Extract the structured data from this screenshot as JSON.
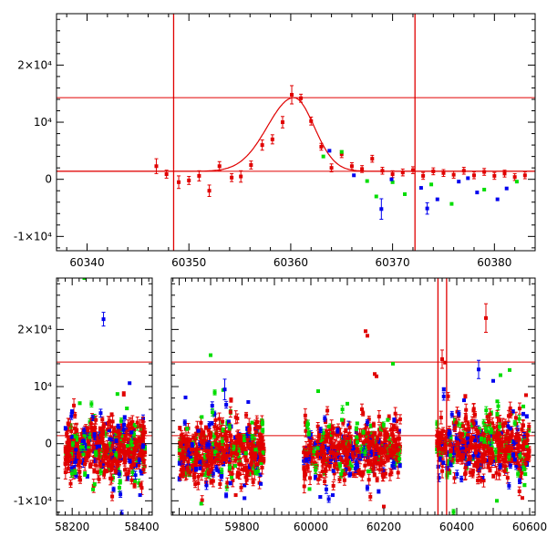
{
  "chart_data": [
    {
      "type": "scatter",
      "panel": "zoom",
      "xlim": [
        60337,
        60384
      ],
      "ylim": [
        -12500,
        29000
      ],
      "x_ticks": [
        {
          "value": 60340,
          "label": "60340"
        },
        {
          "value": 60350,
          "label": "60350"
        },
        {
          "value": 60360,
          "label": "60360"
        },
        {
          "value": 60370,
          "label": "60370"
        },
        {
          "value": 60380,
          "label": "60380"
        }
      ],
      "y_ticks": [
        {
          "value": -10000,
          "label": "-1×10⁴"
        },
        {
          "value": 0,
          "label": "0"
        },
        {
          "value": 10000,
          "label": "10⁴"
        },
        {
          "value": 20000,
          "label": "2×10⁴"
        }
      ],
      "hlines": [
        1400,
        14300
      ],
      "vlines": [
        60348.5,
        60372.2
      ],
      "fit_curve": {
        "baseline": 1400,
        "peak_x": 60360.3,
        "peak_y": 14300,
        "width_left": 2.6,
        "width_right": 2.0
      },
      "series": [
        {
          "color": "#e00000",
          "points": [
            {
              "x": 60346.8,
              "y": 2300,
              "e": 1300
            },
            {
              "x": 60347.8,
              "y": 900,
              "e": 700
            },
            {
              "x": 60349.0,
              "y": -500,
              "e": 1100
            },
            {
              "x": 60350.0,
              "y": -200,
              "e": 700
            },
            {
              "x": 60351.0,
              "y": 600,
              "e": 900
            },
            {
              "x": 60352.0,
              "y": -2000,
              "e": 1000
            },
            {
              "x": 60353.0,
              "y": 2300,
              "e": 800
            },
            {
              "x": 60354.2,
              "y": 300,
              "e": 700
            },
            {
              "x": 60355.1,
              "y": 500,
              "e": 1000
            },
            {
              "x": 60356.1,
              "y": 2500,
              "e": 700
            },
            {
              "x": 60357.2,
              "y": 6000,
              "e": 900
            },
            {
              "x": 60358.2,
              "y": 7000,
              "e": 800
            },
            {
              "x": 60359.2,
              "y": 10000,
              "e": 1000
            },
            {
              "x": 60360.1,
              "y": 14800,
              "e": 1600
            },
            {
              "x": 60361.0,
              "y": 14200,
              "e": 700
            },
            {
              "x": 60362.0,
              "y": 10200,
              "e": 700
            },
            {
              "x": 60363.0,
              "y": 5700,
              "e": 600
            },
            {
              "x": 60364.0,
              "y": 2000,
              "e": 700
            },
            {
              "x": 60365.0,
              "y": 4400,
              "e": 600
            },
            {
              "x": 60366.0,
              "y": 2300,
              "e": 600
            },
            {
              "x": 60367.0,
              "y": 1800,
              "e": 600
            },
            {
              "x": 60368.0,
              "y": 3600,
              "e": 600
            },
            {
              "x": 60369.0,
              "y": 1500,
              "e": 600
            },
            {
              "x": 60370.0,
              "y": 900,
              "e": 600
            },
            {
              "x": 60371.0,
              "y": 1200,
              "e": 600
            },
            {
              "x": 60372.0,
              "y": 1600,
              "e": 600
            },
            {
              "x": 60373.0,
              "y": 600,
              "e": 600
            },
            {
              "x": 60374.0,
              "y": 1400,
              "e": 600
            },
            {
              "x": 60375.0,
              "y": 1100,
              "e": 600
            },
            {
              "x": 60376.0,
              "y": 800,
              "e": 600
            },
            {
              "x": 60377.0,
              "y": 1500,
              "e": 600
            },
            {
              "x": 60378.0,
              "y": 700,
              "e": 600
            },
            {
              "x": 60379.0,
              "y": 1300,
              "e": 600
            },
            {
              "x": 60380.0,
              "y": 600,
              "e": 600
            },
            {
              "x": 60381.0,
              "y": 1000,
              "e": 600
            },
            {
              "x": 60382.0,
              "y": 400,
              "e": 600
            },
            {
              "x": 60383.0,
              "y": 700,
              "e": 600
            }
          ]
        },
        {
          "color": "#00dd00",
          "points": [
            {
              "x": 60363.2,
              "y": 4000,
              "e": 0
            },
            {
              "x": 60365.0,
              "y": 4800,
              "e": 0
            },
            {
              "x": 60367.5,
              "y": -300,
              "e": 0
            },
            {
              "x": 60368.4,
              "y": -3000,
              "e": 0
            },
            {
              "x": 60370.0,
              "y": -500,
              "e": 0
            },
            {
              "x": 60371.2,
              "y": -2600,
              "e": 0
            },
            {
              "x": 60373.8,
              "y": -900,
              "e": 0
            },
            {
              "x": 60375.8,
              "y": -4300,
              "e": 0
            },
            {
              "x": 60379.0,
              "y": -1800,
              "e": 0
            },
            {
              "x": 60382.2,
              "y": -400,
              "e": 0
            }
          ]
        },
        {
          "color": "#0000ee",
          "points": [
            {
              "x": 60363.8,
              "y": 5000,
              "e": 0
            },
            {
              "x": 60366.2,
              "y": 700,
              "e": 0
            },
            {
              "x": 60368.9,
              "y": -5200,
              "e": 1800
            },
            {
              "x": 60369.9,
              "y": 0,
              "e": 0
            },
            {
              "x": 60372.8,
              "y": -1500,
              "e": 0
            },
            {
              "x": 60373.4,
              "y": -5100,
              "e": 1000
            },
            {
              "x": 60374.4,
              "y": -3500,
              "e": 0
            },
            {
              "x": 60376.5,
              "y": -400,
              "e": 0
            },
            {
              "x": 60377.4,
              "y": 200,
              "e": 0
            },
            {
              "x": 60378.3,
              "y": -2300,
              "e": 0
            },
            {
              "x": 60380.3,
              "y": -3500,
              "e": 0
            },
            {
              "x": 60381.2,
              "y": -1600,
              "e": 0
            }
          ]
        }
      ]
    },
    {
      "type": "scatter",
      "panel": "full",
      "x_segments": [
        {
          "name": "segment-1",
          "xlim": [
            58155,
            58430
          ],
          "x_ticks": [
            {
              "value": 58200,
              "label": "58200"
            },
            {
              "value": 58400,
              "label": "58400"
            }
          ]
        },
        {
          "name": "segment-2",
          "xlim": [
            59575,
            59880
          ],
          "x_ticks": [
            {
              "value": 59800,
              "label": "59800"
            }
          ]
        },
        {
          "name": "segment-3",
          "xlim": [
            59880,
            60615
          ],
          "x_ticks": [
            {
              "value": 60000,
              "label": "60000"
            },
            {
              "value": 60200,
              "label": "60200"
            },
            {
              "value": 60400,
              "label": "60400"
            },
            {
              "value": 60600,
              "label": "60600"
            }
          ]
        }
      ],
      "ylim": [
        -12500,
        29000
      ],
      "y_ticks": [
        {
          "value": -10000,
          "label": "-1×10⁴"
        },
        {
          "value": 0,
          "label": "0"
        },
        {
          "value": 10000,
          "label": "10⁴"
        },
        {
          "value": 20000,
          "label": "2×10⁴"
        }
      ],
      "hlines": [
        1400,
        14300
      ],
      "vlines": [
        60348.5,
        60372.2
      ],
      "season_clusters": [
        {
          "x_range": [
            58180,
            58410
          ],
          "y_center": -800,
          "y_spread": 2500
        },
        {
          "x_range": [
            59600,
            59870
          ],
          "y_center": -1500,
          "y_spread": 2600
        },
        {
          "x_range": [
            59980,
            60245
          ],
          "y_center": -1000,
          "y_spread": 2500
        },
        {
          "x_range": [
            60345,
            60600
          ],
          "y_center": -300,
          "y_spread": 2600
        }
      ],
      "highlight_points": [
        {
          "x": 58235,
          "y": 29000,
          "color": "#00dd00",
          "e": 0
        },
        {
          "x": 58290,
          "y": 21800,
          "color": "#0000ee",
          "e": 1200
        },
        {
          "x": 58365,
          "y": 10600,
          "color": "#0000ee",
          "e": 0
        },
        {
          "x": 58330,
          "y": 8700,
          "color": "#00dd00",
          "e": 0
        },
        {
          "x": 58260,
          "y": -8000,
          "color": "#00dd00",
          "e": 0
        },
        {
          "x": 58395,
          "y": -9000,
          "color": "#0000ee",
          "e": 0
        },
        {
          "x": 59700,
          "y": 15500,
          "color": "#00dd00",
          "e": 0
        },
        {
          "x": 59740,
          "y": 9400,
          "color": "#00dd00",
          "e": 0
        },
        {
          "x": 59745,
          "y": 9500,
          "color": "#0000ee",
          "e": 1800
        },
        {
          "x": 59820,
          "y": 7300,
          "color": "#0000ee",
          "e": 0
        },
        {
          "x": 59620,
          "y": 8100,
          "color": "#0000ee",
          "e": 0
        },
        {
          "x": 59670,
          "y": -10500,
          "color": "#00dd00",
          "e": 0
        },
        {
          "x": 59780,
          "y": -9000,
          "color": "#e00000",
          "e": 0
        },
        {
          "x": 60020,
          "y": 9200,
          "color": "#00dd00",
          "e": 0
        },
        {
          "x": 60150,
          "y": 19700,
          "color": "#e00000",
          "e": 0
        },
        {
          "x": 60155,
          "y": 18900,
          "color": "#e00000",
          "e": 0
        },
        {
          "x": 60175,
          "y": 12200,
          "color": "#e00000",
          "e": 0
        },
        {
          "x": 60180,
          "y": 11800,
          "color": "#e00000",
          "e": 0
        },
        {
          "x": 60225,
          "y": 14000,
          "color": "#00dd00",
          "e": 0
        },
        {
          "x": 60100,
          "y": 7000,
          "color": "#00dd00",
          "e": 0
        },
        {
          "x": 60060,
          "y": -9000,
          "color": "#0000ee",
          "e": 0
        },
        {
          "x": 60200,
          "y": -11000,
          "color": "#e00000",
          "e": 0
        },
        {
          "x": 60360,
          "y": 14800,
          "color": "#e00000",
          "e": 1600
        },
        {
          "x": 60368,
          "y": 14200,
          "color": "#e00000",
          "e": 0
        },
        {
          "x": 60460,
          "y": 13000,
          "color": "#0000ee",
          "e": 1600
        },
        {
          "x": 60480,
          "y": 22000,
          "color": "#e00000",
          "e": 2500
        },
        {
          "x": 60500,
          "y": 11000,
          "color": "#0000ee",
          "e": 0
        },
        {
          "x": 60520,
          "y": 12000,
          "color": "#00dd00",
          "e": 0
        },
        {
          "x": 60545,
          "y": 12900,
          "color": "#00dd00",
          "e": 0
        },
        {
          "x": 60590,
          "y": 8500,
          "color": "#e00000",
          "e": 0
        },
        {
          "x": 60420,
          "y": 7600,
          "color": "#0000ee",
          "e": 0
        },
        {
          "x": 60510,
          "y": -10000,
          "color": "#00dd00",
          "e": 0
        },
        {
          "x": 60580,
          "y": -9500,
          "color": "#e00000",
          "e": 0
        }
      ]
    }
  ]
}
